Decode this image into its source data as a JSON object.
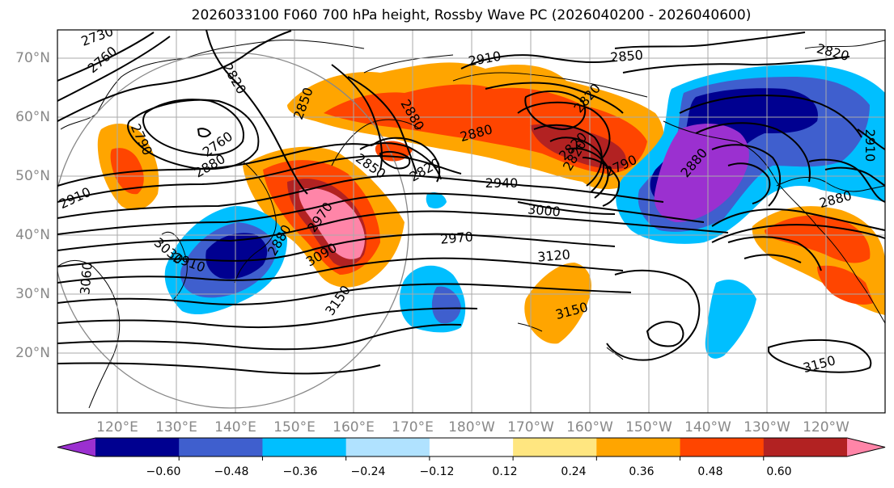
{
  "title": "2026033100 F060 700 hPa height, Rossby Wave PC (2026040200 - 2026040600)",
  "lat_labels": [
    "70°N",
    "60°N",
    "50°N",
    "40°N",
    "30°N",
    "20°N"
  ],
  "lon_labels": [
    "120°E",
    "130°E",
    "140°E",
    "150°E",
    "160°E",
    "170°E",
    "180°W",
    "170°W",
    "160°W",
    "150°W",
    "140°W",
    "130°W",
    "120°W"
  ],
  "colorbar": {
    "ticks": [
      "−0.60",
      "−0.48",
      "−0.36",
      "−0.24",
      "−0.12",
      "0.12",
      "0.24",
      "0.36",
      "0.48",
      "0.60"
    ],
    "colors": [
      "#9b30d0",
      "#000090",
      "#3f5fce",
      "#00bfff",
      "#b0e2ff",
      "#ffffff",
      "#ffe680",
      "#ffa500",
      "#ff4500",
      "#b22222",
      "#ff85a8"
    ]
  },
  "contour_labels": [
    "2730",
    "2760",
    "2820",
    "2850",
    "2910",
    "2850",
    "2820",
    "2880",
    "2820",
    "2820",
    "2790",
    "2760",
    "2790",
    "2850",
    "2820",
    "2940",
    "3000",
    "3120",
    "3150",
    "3150",
    "2910",
    "2880",
    "2880",
    "2910",
    "2970",
    "2880",
    "3030",
    "3060",
    "3090",
    "3150",
    "2820",
    "2910",
    "2880",
    "2910",
    "2880",
    "2970"
  ]
}
